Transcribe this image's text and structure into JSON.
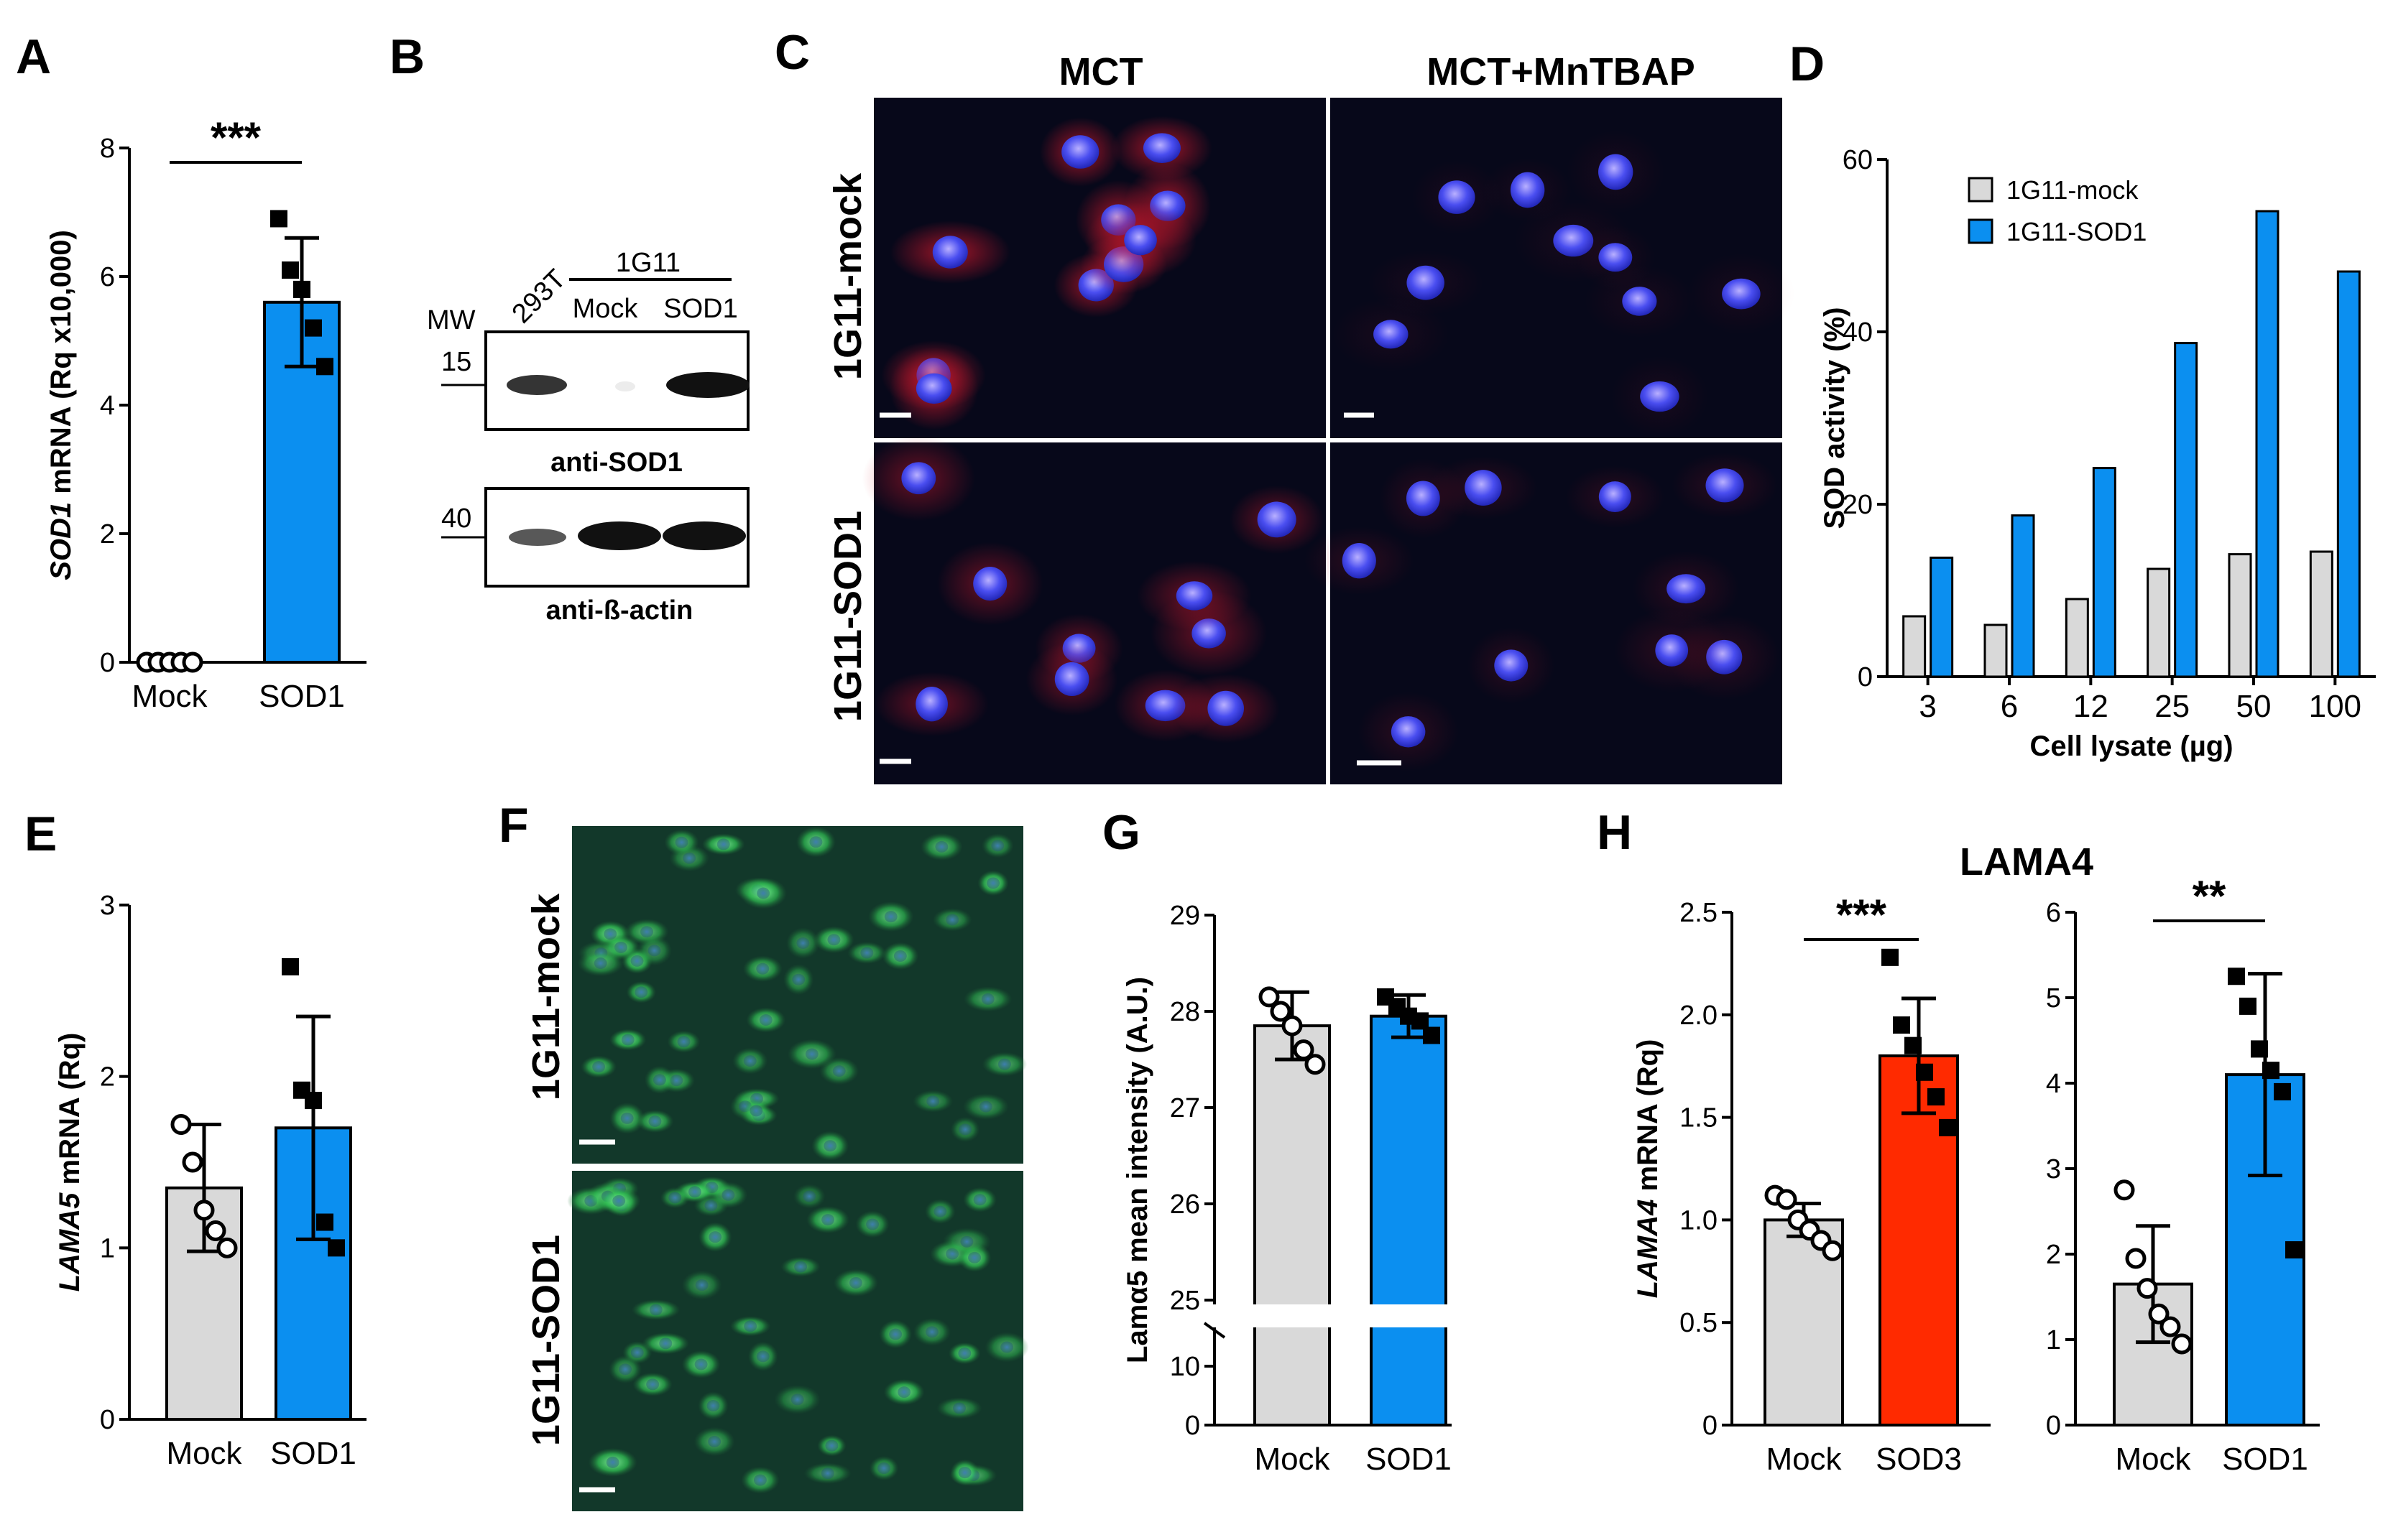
{
  "colors": {
    "mock": "#d9d9d9",
    "sod1": "#0b8ff0",
    "sod3": "#ff2a00",
    "black": "#000000",
    "nucleus": "#3b3fe0",
    "stain_red": "#d2182c",
    "stain_green": "#2fbf52"
  },
  "panels": {
    "A": {
      "label": "A"
    },
    "B": {
      "label": "B",
      "mw": "MW",
      "lane_293t": "293T",
      "group": "1G11",
      "lane_mock": "Mock",
      "lane_sod1": "SOD1",
      "mw_top": "15",
      "mw_bottom": "40",
      "blot_top": "anti-SOD1",
      "blot_bottom": "anti-ß-actin",
      "band_intensity_top": [
        0.85,
        0.08,
        1.0
      ],
      "band_intensity_bottom": [
        0.7,
        1.0,
        1.0
      ]
    },
    "C": {
      "label": "C",
      "col1": "MCT",
      "col2": "MCT+MnTBAP",
      "row1": "1G11-mock",
      "row2": "1G11-SOD1",
      "icon": "fluorescence-micrograph-icon"
    },
    "D": {
      "label": "D"
    },
    "E": {
      "label": "E"
    },
    "F": {
      "label": "F",
      "row1": "1G11-mock",
      "row2": "1G11-SOD1",
      "icon": "fluorescence-micrograph-icon"
    },
    "G": {
      "label": "G"
    },
    "H": {
      "label": "H",
      "title": "LAMA4"
    }
  },
  "chart_data": [
    {
      "panel": "A",
      "type": "bar",
      "categories": [
        "Mock",
        "SOD1"
      ],
      "values": [
        0.0,
        5.6
      ],
      "sd": [
        0.0,
        1.0
      ],
      "points": [
        [
          0,
          0,
          0,
          0,
          0
        ],
        [
          6.9,
          6.1,
          5.8,
          5.2,
          4.6
        ]
      ],
      "ylabel_italic": "SOD1",
      "ylabel": "mRNA (Rq x10,000)",
      "ylim": [
        0,
        8
      ],
      "yticks": [
        "0",
        "2",
        "4",
        "6",
        "8"
      ],
      "significance": "***",
      "bar_colors": [
        "#d9d9d9",
        "#0b8ff0"
      ],
      "point_styles": [
        "open",
        "filled"
      ]
    },
    {
      "panel": "D",
      "type": "bar",
      "categories": [
        "3",
        "6",
        "12",
        "25",
        "50",
        "100"
      ],
      "series": [
        {
          "name": "1G11-mock",
          "values": [
            7,
            6,
            9,
            12.5,
            14.2,
            14.5
          ],
          "color": "#d9d9d9"
        },
        {
          "name": "1G11-SOD1",
          "values": [
            13.8,
            18.7,
            24.2,
            38.7,
            54,
            47
          ],
          "color": "#0b8ff0"
        }
      ],
      "xlabel": "Cell lysate (µg)",
      "ylabel": "SOD activity (%)",
      "ylim": [
        0,
        60
      ],
      "yticks": [
        "0",
        "20",
        "40",
        "60"
      ],
      "legend": "top-left"
    },
    {
      "panel": "E",
      "type": "bar",
      "categories": [
        "Mock",
        "SOD1"
      ],
      "values": [
        1.35,
        1.7
      ],
      "sd": [
        0.37,
        0.65
      ],
      "points": [
        [
          1.72,
          1.5,
          1.22,
          1.1,
          1.0
        ],
        [
          2.64,
          1.92,
          1.86,
          1.15,
          1.0
        ]
      ],
      "ylabel_italic": "LAMA5",
      "ylabel": "mRNA (Rq)",
      "ylim": [
        0,
        3
      ],
      "yticks": [
        "0",
        "1",
        "2",
        "3"
      ],
      "bar_colors": [
        "#d9d9d9",
        "#0b8ff0"
      ],
      "point_styles": [
        "open",
        "filled"
      ]
    },
    {
      "panel": "G",
      "type": "bar",
      "categories": [
        "Mock",
        "SOD1"
      ],
      "values": [
        27.85,
        27.95
      ],
      "sd": [
        0.35,
        0.22
      ],
      "points": [
        [
          28.15,
          28.0,
          27.85,
          27.6,
          27.45
        ],
        [
          28.15,
          28.05,
          27.95,
          27.9,
          27.75
        ]
      ],
      "ylabel": "Lamα5 mean intensity (A.U.)",
      "ylim": [
        0,
        29
      ],
      "axis_break": [
        10,
        25
      ],
      "yticks": [
        "0",
        "10",
        "25",
        "26",
        "27",
        "28",
        "29"
      ],
      "bar_colors": [
        "#d9d9d9",
        "#0b8ff0"
      ],
      "point_styles": [
        "open",
        "filled"
      ]
    },
    {
      "panel": "H-left",
      "type": "bar",
      "categories": [
        "Mock",
        "SOD3"
      ],
      "values": [
        1.0,
        1.8
      ],
      "sd": [
        0.08,
        0.28
      ],
      "points": [
        [
          1.12,
          1.1,
          1.0,
          0.95,
          0.9,
          0.85
        ],
        [
          2.28,
          1.95,
          1.85,
          1.72,
          1.6,
          1.45
        ]
      ],
      "ylabel_italic": "LAMA4",
      "ylabel": "mRNA (Rq)",
      "ylim": [
        0,
        2.5
      ],
      "yticks": [
        "0",
        "0.5",
        "1.0",
        "1.5",
        "2.0",
        "2.5"
      ],
      "significance": "***",
      "bar_colors": [
        "#d9d9d9",
        "#ff2a00"
      ],
      "point_styles": [
        "open",
        "filled"
      ]
    },
    {
      "panel": "H-right",
      "type": "bar",
      "categories": [
        "Mock",
        "SOD1"
      ],
      "values": [
        1.65,
        4.1
      ],
      "sd": [
        0.68,
        1.18
      ],
      "points": [
        [
          2.75,
          1.95,
          1.6,
          1.3,
          1.15,
          0.95
        ],
        [
          5.25,
          4.9,
          4.4,
          4.15,
          3.9,
          2.05
        ]
      ],
      "ylim": [
        0,
        6
      ],
      "yticks": [
        "0",
        "1",
        "2",
        "3",
        "4",
        "5",
        "6"
      ],
      "significance": "**",
      "bar_colors": [
        "#d9d9d9",
        "#0b8ff0"
      ],
      "point_styles": [
        "open",
        "filled"
      ]
    }
  ]
}
